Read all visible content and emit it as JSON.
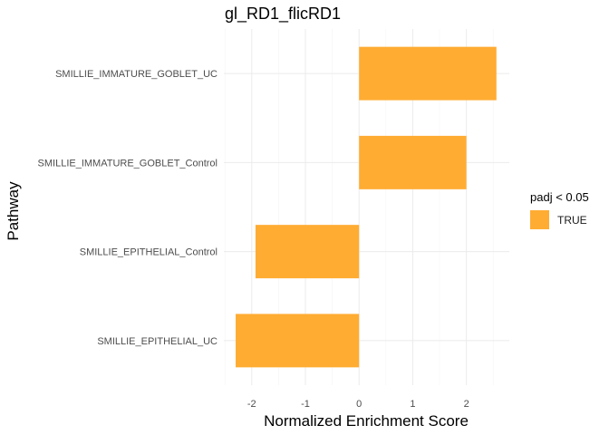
{
  "chart_data": {
    "type": "bar",
    "orientation": "horizontal",
    "title": "gl_RD1_flicRD1",
    "xlabel": "Normalized Enrichment Score",
    "ylabel": "Pathway",
    "categories": [
      "SMILLIE_EPITHELIAL_UC",
      "SMILLIE_EPITHELIAL_Control",
      "SMILLIE_IMMATURE_GOBLET_Control",
      "SMILLIE_IMMATURE_GOBLET_UC"
    ],
    "values": [
      -2.3,
      -1.93,
      2.0,
      2.56
    ],
    "xlim": [
      -2.52,
      2.8
    ],
    "xticks": [
      -2,
      -1,
      0,
      1,
      2
    ],
    "xtick_labels": [
      "-2",
      "-1",
      "0",
      "1",
      "2"
    ],
    "grid": true,
    "legend": {
      "title": "padj < 0.05",
      "entries": [
        {
          "label": "TRUE",
          "color": "#FFAC33"
        }
      ],
      "position": "right"
    },
    "bar_color": "#FFAC33"
  }
}
